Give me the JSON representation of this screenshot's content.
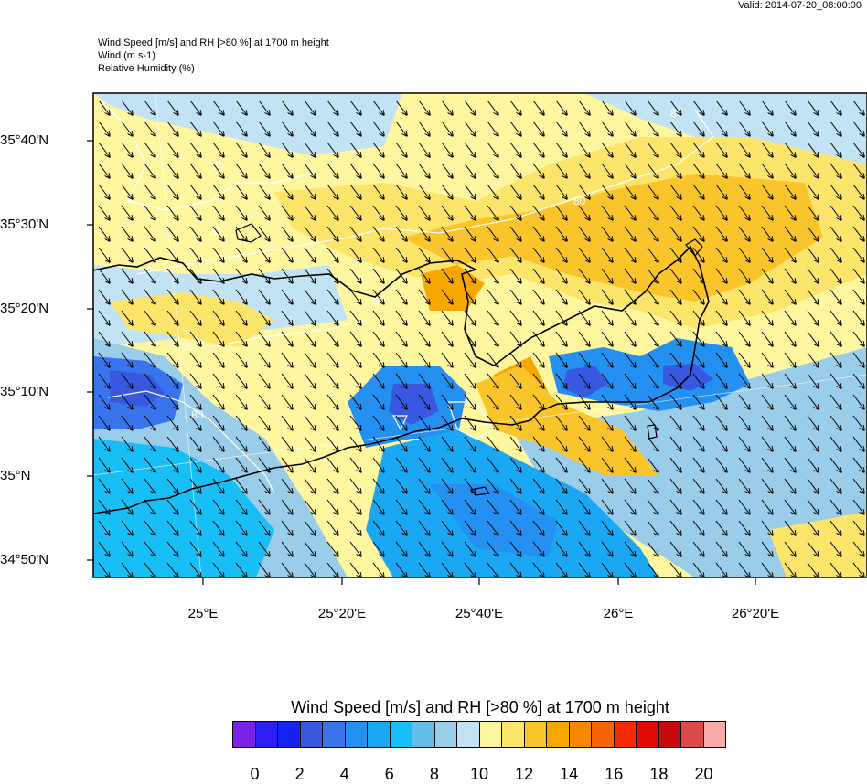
{
  "valid_time": "Valid: 2014-07-20_08:00:00",
  "header_lines": [
    "Wind Speed [m/s] and RH [>80 %] at 1700 m height",
    "Wind   (m s-1)",
    "Relative Humidity   (%)"
  ],
  "lat_labels": [
    "35°40'N",
    "35°30'N",
    "35°20'N",
    "35°10'N",
    "35°N",
    "34°50'N"
  ],
  "lon_labels": [
    "25°E",
    "25°20'E",
    "25°40'E",
    "26°E",
    "26°20'E"
  ],
  "rh_contour_label": "80",
  "wind_direction": "from north-west",
  "colorbar": {
    "title": "Wind Speed [m/s] and RH [>80 %] at 1700 m height",
    "colors": [
      "#7a22e8",
      "#2d1ef2",
      "#1424f0",
      "#3858e0",
      "#3a74ec",
      "#2390f2",
      "#1aa8f4",
      "#18bff6",
      "#63bde6",
      "#9acdea",
      "#c1e3f3",
      "#fff7a0",
      "#fde56c",
      "#fac52a",
      "#f7a800",
      "#f98600",
      "#f96300",
      "#f42a00",
      "#e20a00",
      "#c80a0a",
      "#dc4a4a",
      "#f7aaaa"
    ],
    "labels": [
      "0",
      "2",
      "4",
      "6",
      "8",
      "10",
      "12",
      "14",
      "16",
      "18",
      "20"
    ]
  }
}
